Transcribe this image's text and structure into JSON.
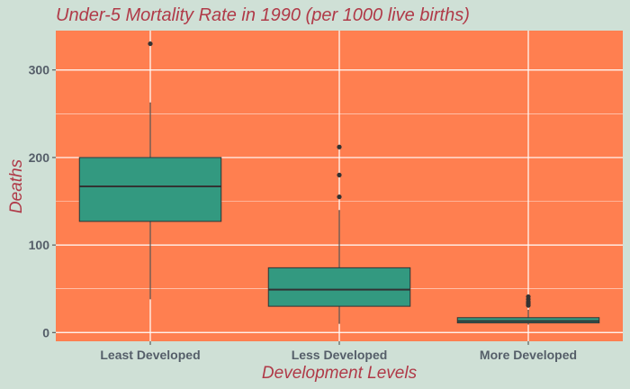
{
  "chart_data": {
    "type": "box",
    "title": "Under-5 Mortality Rate in 1990 (per 1000 live births)",
    "xlabel": "Development Levels",
    "ylabel": "Deaths",
    "categories": [
      "Least Developed",
      "Less Developed",
      "More Developed"
    ],
    "ylim": [
      -10,
      345
    ],
    "yticks": [
      0,
      100,
      200,
      300
    ],
    "grid": true,
    "boxes": [
      {
        "category": "Least Developed",
        "whisker_low": 38,
        "q1": 127,
        "median": 167,
        "q3": 200,
        "whisker_high": 263,
        "outliers": [
          330
        ]
      },
      {
        "category": "Less Developed",
        "whisker_low": 10,
        "q1": 30,
        "median": 49,
        "q3": 74,
        "whisker_high": 140,
        "outliers": [
          155,
          180,
          212
        ]
      },
      {
        "category": "More Developed",
        "whisker_low": 9,
        "q1": 11,
        "median": 13,
        "q3": 17,
        "whisker_high": 26,
        "outliers": [
          31,
          33,
          35,
          38,
          41
        ]
      }
    ],
    "colors": {
      "panel": "#ff7f50",
      "box_fill": "#339980",
      "box_line": "#333333",
      "grid": "#ffffff",
      "background": "#cfe0d6"
    }
  }
}
